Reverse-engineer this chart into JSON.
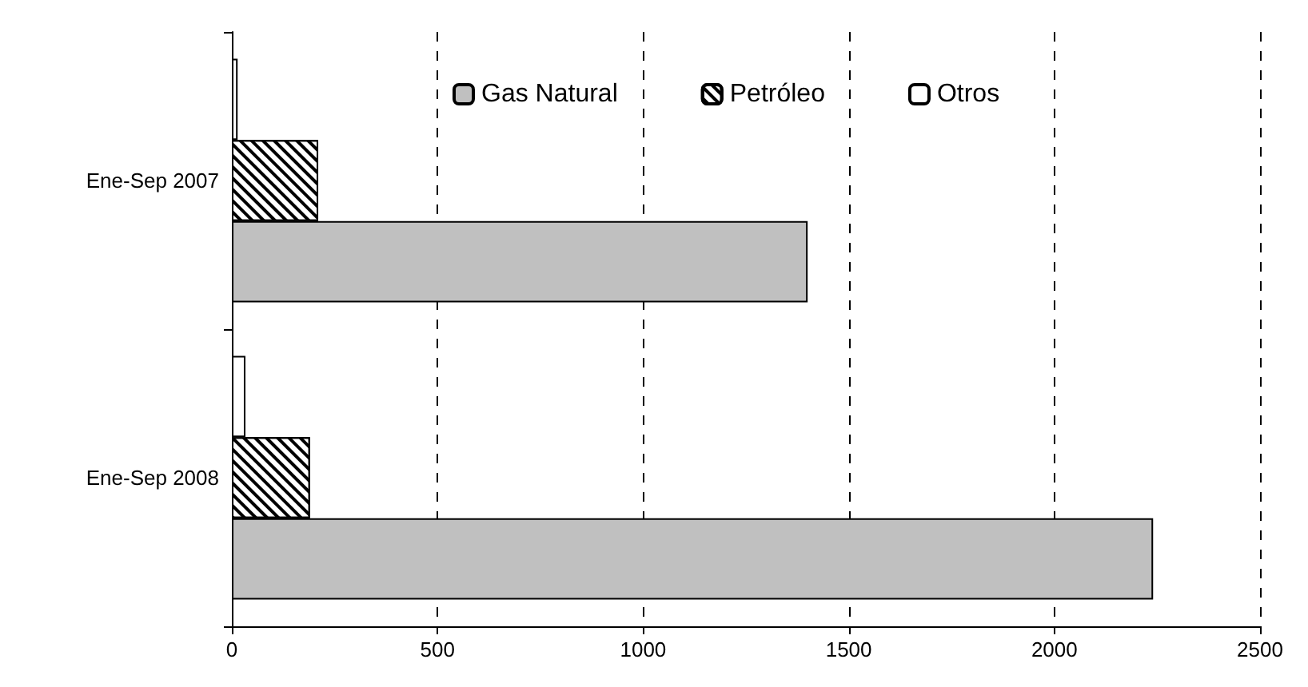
{
  "chart_data": {
    "type": "bar",
    "orientation": "horizontal",
    "categories": [
      "Ene-Sep 2007",
      "Ene-Sep 2008"
    ],
    "series": [
      {
        "name": "Gas Natural",
        "color": "#c0c0c0",
        "values": [
          1400,
          2240
        ]
      },
      {
        "name": "Petróleo",
        "color": "#000000",
        "values": [
          210,
          190
        ]
      },
      {
        "name": "Otros",
        "color": "#ffffff",
        "values": [
          14,
          33
        ]
      }
    ],
    "xlim": [
      0,
      2500
    ],
    "xticks": [
      0,
      500,
      1000,
      1500,
      2000,
      2500
    ],
    "grid": "x",
    "legend": "top"
  }
}
